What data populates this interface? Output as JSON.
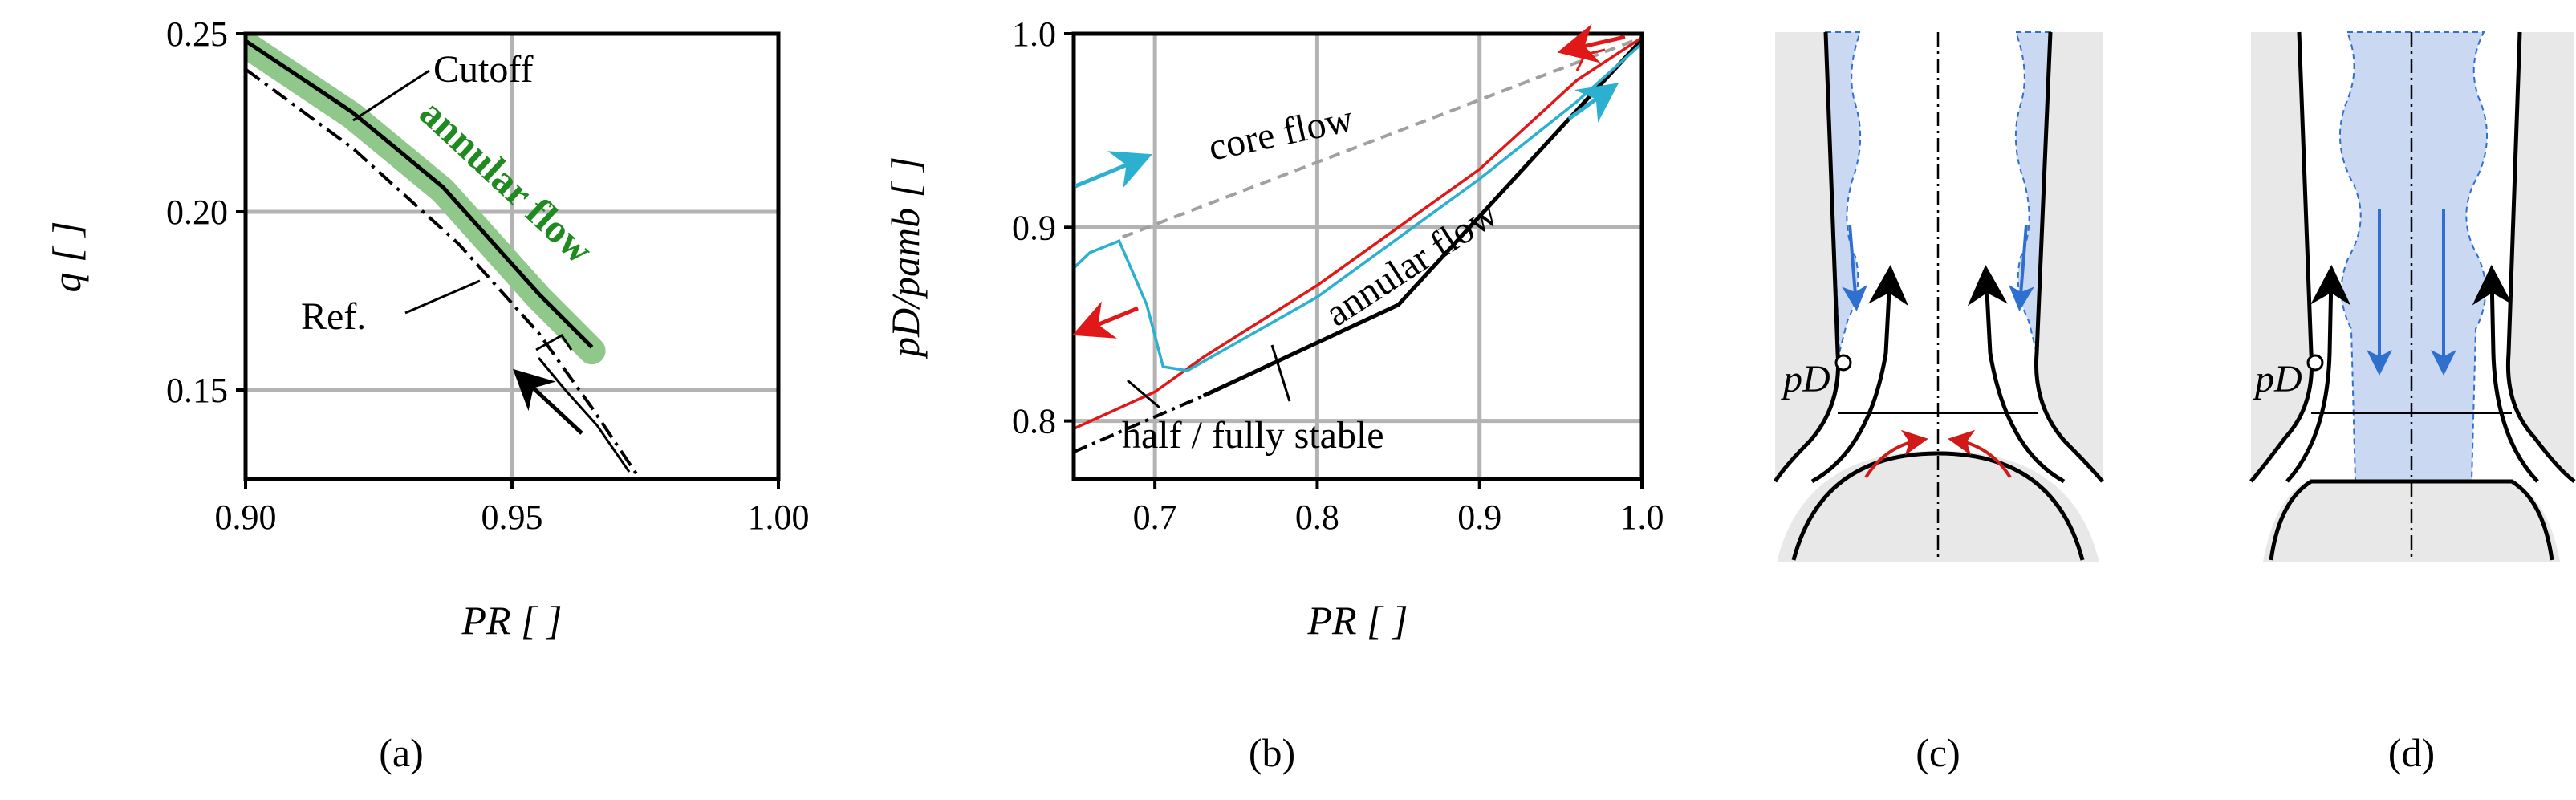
{
  "chart_data": [
    {
      "panel": "a",
      "type": "line",
      "xlabel": "PR [ ]",
      "ylabel": "q [ ]",
      "xlim": [
        0.9,
        1.0
      ],
      "ylim": [
        0.125,
        0.25
      ],
      "xticks": [
        "0.90",
        "0.95",
        "1.00"
      ],
      "yticks": [
        "0.15",
        "0.20",
        "0.25"
      ],
      "grid": true,
      "series": [
        {
          "name": "annular flow",
          "color": "#90c78a",
          "style": "thick-band",
          "x": [
            0.9,
            0.92,
            0.937,
            0.955,
            0.965
          ],
          "y": [
            0.247,
            0.227,
            0.206,
            0.176,
            0.161
          ]
        },
        {
          "name": "Cutoff",
          "color": "#000000",
          "style": "solid",
          "x": [
            0.9,
            0.92,
            0.937,
            0.955,
            0.965
          ],
          "y": [
            0.248,
            0.228,
            0.207,
            0.177,
            0.162
          ]
        },
        {
          "name": "Ref.",
          "color": "#000000",
          "style": "dash-dot",
          "x": [
            0.9,
            0.92,
            0.94,
            0.955,
            0.965,
            0.974
          ],
          "y": [
            0.24,
            0.218,
            0.191,
            0.166,
            0.145,
            0.125
          ]
        },
        {
          "name": "",
          "color": "#000000",
          "style": "solid-thin",
          "x": [
            0.955,
            0.96,
            0.966,
            0.972
          ],
          "y": [
            0.159,
            0.15,
            0.14,
            0.127
          ]
        }
      ],
      "annotations": [
        "Cutoff",
        "annular flow",
        "Ref."
      ],
      "colors": {
        "annular_label": "#1f8a1f"
      },
      "caption": "(a)"
    },
    {
      "panel": "b",
      "type": "line",
      "xlabel": "PR [ ]",
      "ylabel": "pD/pamb [ ]",
      "xlim": [
        0.65,
        1.0
      ],
      "ylim": [
        0.77,
        1.0
      ],
      "xticks": [
        "0.7",
        "0.8",
        "0.9",
        "1.0"
      ],
      "yticks": [
        "0.8",
        "0.9",
        "1.0"
      ],
      "grid": true,
      "series": [
        {
          "name": "core flow",
          "color": "#a0a0a0",
          "style": "dashed",
          "x": [
            0.68,
            1.0
          ],
          "y": [
            0.895,
            0.998
          ]
        },
        {
          "name": "annular flow",
          "color": "#000000",
          "style": "solid",
          "x": [
            0.73,
            0.85,
            1.0
          ],
          "y": [
            0.813,
            0.86,
            0.997
          ]
        },
        {
          "name": "half / fully stable",
          "color": "#000000",
          "style": "dash-dot",
          "x": [
            0.65,
            0.73
          ],
          "y": [
            0.784,
            0.813
          ]
        },
        {
          "name": "",
          "color": "#e01818",
          "style": "solid",
          "x": [
            0.65,
            0.7,
            0.73,
            0.8,
            0.9,
            0.96,
            1.0
          ],
          "y": [
            0.796,
            0.815,
            0.833,
            0.87,
            0.93,
            0.976,
            0.998
          ]
        },
        {
          "name": "",
          "color": "#2bb0cf",
          "style": "solid",
          "x": [
            0.65,
            0.66,
            0.678,
            0.695,
            0.705,
            0.72,
            0.8,
            0.9,
            0.96,
            1.0
          ],
          "y": [
            0.879,
            0.887,
            0.893,
            0.86,
            0.828,
            0.826,
            0.864,
            0.925,
            0.965,
            0.995
          ]
        }
      ],
      "annotations": [
        "core flow",
        "annular flow",
        "half / fully stable"
      ],
      "colors": {
        "red": "#e01818",
        "cyan": "#2bb0cf"
      },
      "caption": "(b)"
    }
  ],
  "diagrams": {
    "c": {
      "label": "pD",
      "caption": "(c)"
    },
    "d": {
      "label": "pD",
      "caption": "(d)"
    }
  },
  "colors": {
    "wall_fill": "#e8e8e8",
    "flow_fill": "#cad8f2",
    "flow_arrow": "#2f6fcf",
    "recirc_arrow": "#d01a1a"
  }
}
